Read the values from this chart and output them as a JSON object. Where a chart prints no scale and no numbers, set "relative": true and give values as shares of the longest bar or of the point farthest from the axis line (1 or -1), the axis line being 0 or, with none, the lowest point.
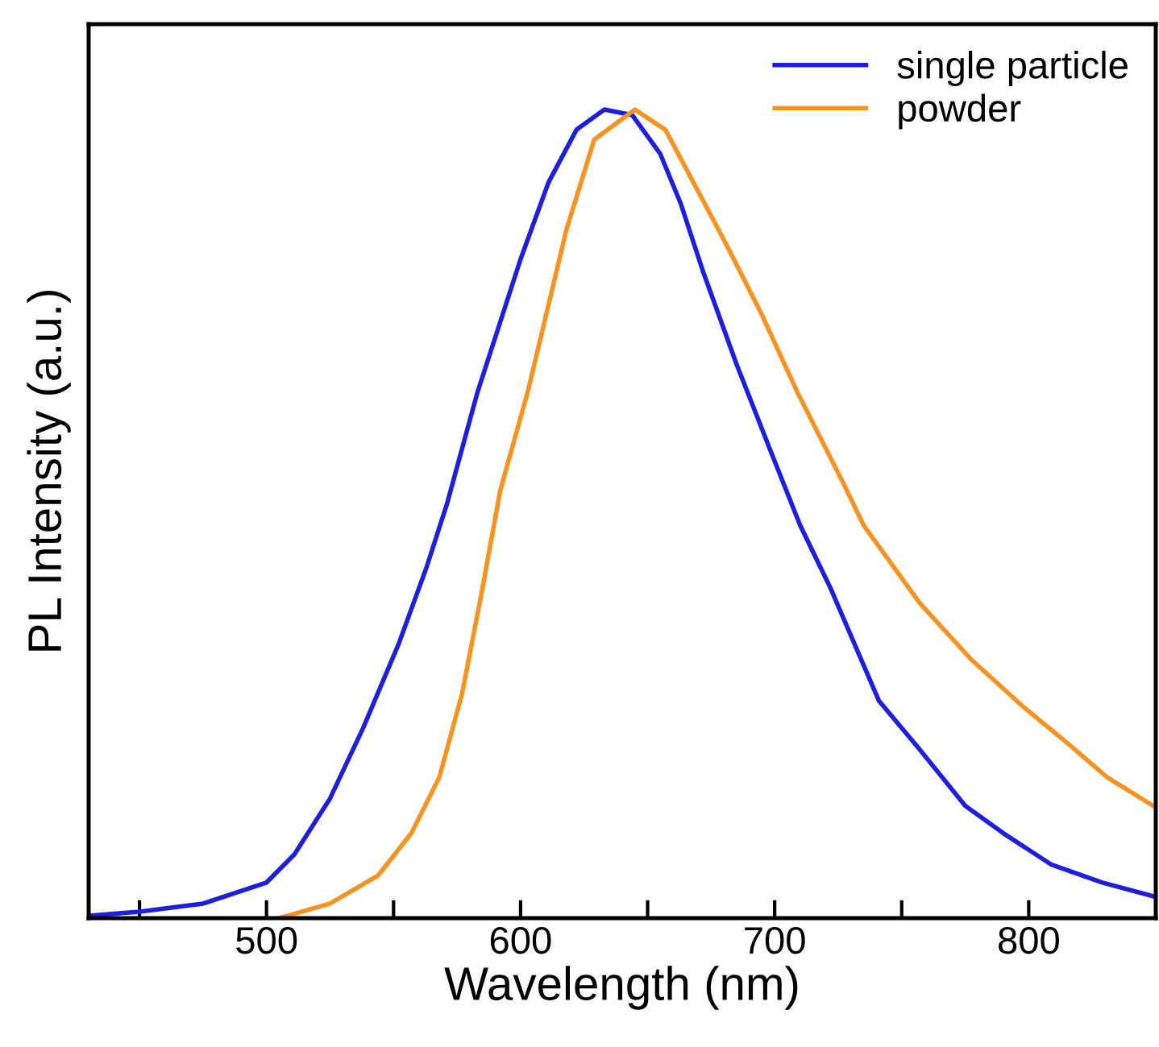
{
  "chart_data": {
    "type": "line",
    "xlabel": "Wavelength (nm)",
    "ylabel": "PL Intensity (a.u.)",
    "relative": true,
    "xlim": [
      430,
      850
    ],
    "xticks": [
      {
        "value": 450,
        "label": null
      },
      500,
      {
        "value": 550,
        "label": null
      },
      600,
      {
        "value": 650,
        "label": null
      },
      700,
      {
        "value": 750,
        "label": null
      },
      800
    ],
    "tick_labels": "x",
    "grid": false,
    "legend": "top right",
    "marker": "none",
    "line_style": "solid",
    "series": [
      {
        "name": "single particle",
        "color": "#1e1ee0",
        "x": [
          430,
          450,
          475,
          500,
          511,
          525,
          538,
          552,
          563,
          571,
          583,
          600,
          611,
          622,
          633,
          644,
          655,
          663,
          672,
          685,
          699,
          710,
          722,
          741,
          757,
          775,
          790,
          809,
          829,
          849
        ],
        "values": [
          0.003,
          0.008,
          0.018,
          0.044,
          0.079,
          0.148,
          0.235,
          0.339,
          0.434,
          0.512,
          0.65,
          0.815,
          0.91,
          0.975,
          1.0,
          0.993,
          0.945,
          0.884,
          0.798,
          0.685,
          0.573,
          0.486,
          0.408,
          0.269,
          0.209,
          0.139,
          0.105,
          0.066,
          0.044,
          0.027
        ]
      },
      {
        "name": "powder",
        "color": "#f7931e",
        "x": [
          505,
          525,
          544,
          557,
          568,
          577,
          585,
          592,
          603,
          618,
          629,
          645,
          657,
          668,
          681,
          695,
          709,
          727,
          735,
          757,
          777,
          798,
          815,
          831,
          849
        ],
        "values": [
          0,
          0.018,
          0.053,
          0.105,
          0.174,
          0.278,
          0.408,
          0.529,
          0.653,
          0.851,
          0.963,
          1.0,
          0.975,
          0.91,
          0.833,
          0.746,
          0.65,
          0.538,
          0.486,
          0.39,
          0.321,
          0.261,
          0.217,
          0.174,
          0.139
        ]
      }
    ]
  }
}
